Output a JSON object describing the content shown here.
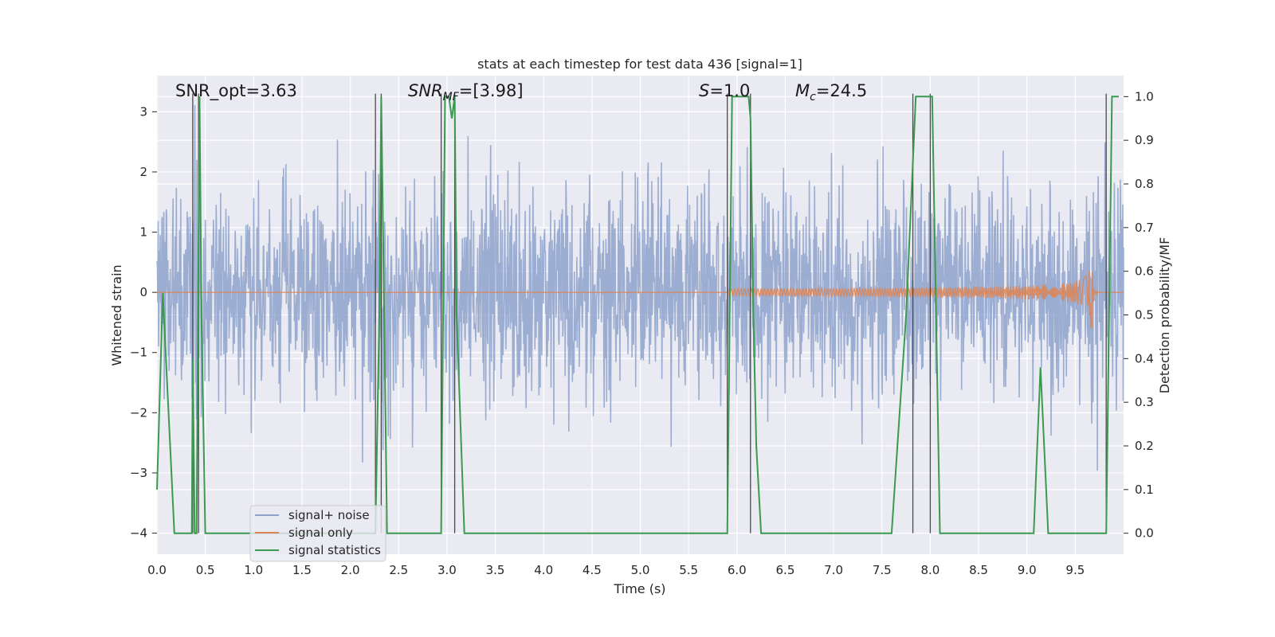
{
  "chart_data": {
    "type": "line",
    "title": "stats at each timestep for test data 436 [signal=1]",
    "xlabel": "Time (s)",
    "ylabel": "Whitened strain",
    "y2label": "Detection probability/MF",
    "xlim": [
      0.0,
      10.0
    ],
    "ylim": [
      -4.35,
      3.6
    ],
    "y2lim": [
      -0.048,
      1.048
    ],
    "x_ticks": [
      "0.0",
      "0.5",
      "1.0",
      "1.5",
      "2.0",
      "2.5",
      "3.0",
      "3.5",
      "4.0",
      "4.5",
      "5.0",
      "5.5",
      "6.0",
      "6.5",
      "7.0",
      "7.5",
      "8.0",
      "8.5",
      "9.0",
      "9.5"
    ],
    "y_ticks": [
      "3",
      "2",
      "1",
      "0",
      "−1",
      "−2",
      "−3",
      "−4"
    ],
    "y2_ticks": [
      "1.0",
      "0.9",
      "0.8",
      "0.7",
      "0.6",
      "0.5",
      "0.4",
      "0.3",
      "0.2",
      "0.1",
      "0.0"
    ],
    "grid": true,
    "legend_placement": "lower-left",
    "annotations": {
      "snr_opt": "SNR_opt=3.63",
      "snr_mf_main": "SNR",
      "snr_mf_sub": "MF",
      "snr_mf_val": "=[3.98]",
      "s_main": "S",
      "s_val": "=1.0",
      "mc_main": "M",
      "mc_sub": "c",
      "mc_val": "=24.5"
    },
    "series": [
      {
        "name": "signal+ noise",
        "color": "#8ea2cc",
        "description_values": "whitened noisy strain, roughly ±1.5 with spikes to about ±3",
        "envelope": [
          -1.3,
          1.3
        ]
      },
      {
        "name": "signal only",
        "color": "#dd8452",
        "chirp": {
          "start": 5.9,
          "merger": 9.67,
          "peak_amplitude": 0.7
        }
      },
      {
        "name": "signal statistics",
        "color": "#3a9a4e",
        "axis": "right",
        "x": [
          0.0,
          0.06,
          0.18,
          0.36,
          0.37,
          0.39,
          0.41,
          0.44,
          0.46,
          0.5,
          2.26,
          2.3,
          2.32,
          2.35,
          2.38,
          2.4,
          2.94,
          2.98,
          3.02,
          3.05,
          3.08,
          3.1,
          3.18,
          3.2,
          5.9,
          5.95,
          6.12,
          6.14,
          6.17,
          6.2,
          6.25,
          6.28,
          7.6,
          7.75,
          7.85,
          7.9,
          8.02,
          8.06,
          8.1,
          8.12,
          9.07,
          9.14,
          9.22,
          9.27,
          9.82,
          9.88,
          9.9,
          9.95
        ],
        "y": [
          0.1,
          0.55,
          0.0,
          0.0,
          0.4,
          0.0,
          0.0,
          1.0,
          0.5,
          0.0,
          0.0,
          0.5,
          1.0,
          0.5,
          0.0,
          0.0,
          0.0,
          1.0,
          1.0,
          0.95,
          1.0,
          0.5,
          0.0,
          0.0,
          0.0,
          1.0,
          1.0,
          0.95,
          0.5,
          0.2,
          0.0,
          0.0,
          0.0,
          0.5,
          1.0,
          1.0,
          1.0,
          0.5,
          0.0,
          0.0,
          0.0,
          0.38,
          0.0,
          0.0,
          0.0,
          1.0,
          1.0,
          1.0
        ]
      }
    ],
    "vertical_markers": [
      0.37,
      0.43,
      2.26,
      2.32,
      2.94,
      3.08,
      5.9,
      6.14,
      7.82,
      8.0,
      9.82
    ]
  }
}
